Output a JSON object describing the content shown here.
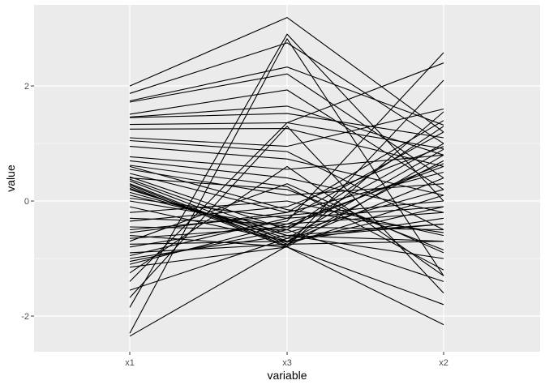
{
  "chart_data": {
    "type": "line",
    "subtype": "parallel-coordinates",
    "title": "",
    "xlabel": "variable",
    "ylabel": "value",
    "categories": [
      "x1",
      "x3",
      "x2"
    ],
    "yticks": [
      -2,
      0,
      2
    ],
    "ylim": [
      -2.62,
      3.41
    ],
    "grid": true,
    "legend": "none",
    "colors": {
      "panel": "#ebebeb",
      "grid": "#ffffff",
      "line": "#000000",
      "tick_text": "#4d4d4d"
    },
    "series": [
      {
        "values": [
          2.0,
          3.19,
          1.2
        ]
      },
      {
        "values": [
          1.87,
          2.75,
          1.0
        ]
      },
      {
        "values": [
          1.74,
          2.33,
          1.32
        ]
      },
      {
        "values": [
          1.72,
          2.21,
          0.4
        ]
      },
      {
        "values": [
          1.51,
          1.93,
          0.2
        ]
      },
      {
        "values": [
          1.46,
          1.65,
          0.8
        ]
      },
      {
        "values": [
          1.45,
          1.52,
          1.1
        ]
      },
      {
        "values": [
          1.33,
          1.36,
          0.91
        ]
      },
      {
        "values": [
          1.25,
          1.26,
          0.6
        ]
      },
      {
        "values": [
          1.1,
          0.95,
          1.6
        ]
      },
      {
        "values": [
          1.05,
          0.86,
          -0.5
        ]
      },
      {
        "values": [
          0.95,
          0.73,
          0.1
        ]
      },
      {
        "values": [
          0.77,
          0.55,
          0.8
        ]
      },
      {
        "values": [
          0.7,
          0.4,
          -0.2
        ]
      },
      {
        "values": [
          0.62,
          0.25,
          -1.2
        ]
      },
      {
        "values": [
          0.55,
          0.1,
          0.3
        ]
      },
      {
        "values": [
          0.48,
          -0.2,
          0.5
        ]
      },
      {
        "values": [
          0.42,
          -0.5,
          1.3
        ]
      },
      {
        "values": [
          0.38,
          -0.6,
          -0.4
        ]
      },
      {
        "values": [
          0.35,
          -0.7,
          0.7
        ]
      },
      {
        "values": [
          0.3,
          -0.75,
          -0.7
        ]
      },
      {
        "values": [
          0.28,
          -0.78,
          1.55
        ]
      },
      {
        "values": [
          0.25,
          -0.8,
          -1.8
        ]
      },
      {
        "values": [
          0.22,
          -0.72,
          -0.1
        ]
      },
      {
        "values": [
          0.2,
          -0.65,
          0.9
        ]
      },
      {
        "values": [
          0.15,
          -0.6,
          -1.0
        ]
      },
      {
        "values": [
          0.1,
          -0.55,
          0.2
        ]
      },
      {
        "values": [
          0.05,
          -0.3,
          1.2
        ]
      },
      {
        "values": [
          -0.1,
          -0.7,
          -0.3
        ]
      },
      {
        "values": [
          -0.2,
          0.0,
          -0.6
        ]
      },
      {
        "values": [
          -0.3,
          -0.4,
          0.6
        ]
      },
      {
        "values": [
          -0.45,
          -0.5,
          -1.4
        ]
      },
      {
        "values": [
          -0.5,
          -0.25,
          0.0
        ]
      },
      {
        "values": [
          -0.55,
          -0.2,
          1.4
        ]
      },
      {
        "values": [
          -0.6,
          -0.8,
          -2.15
        ]
      },
      {
        "values": [
          -0.65,
          -0.45,
          -0.5
        ]
      },
      {
        "values": [
          -0.7,
          0.3,
          -0.9
        ]
      },
      {
        "values": [
          -0.75,
          -0.7,
          0.4
        ]
      },
      {
        "values": [
          -0.8,
          -0.35,
          2.58
        ]
      },
      {
        "values": [
          -0.9,
          -0.75,
          0.1
        ]
      },
      {
        "values": [
          -1.0,
          -0.6,
          -0.7
        ]
      },
      {
        "values": [
          -1.05,
          -0.5,
          1.0
        ]
      },
      {
        "values": [
          -1.1,
          -0.4,
          -0.2
        ]
      },
      {
        "values": [
          -1.15,
          -0.8,
          0.8
        ]
      },
      {
        "values": [
          -1.25,
          0.6,
          -1.3
        ]
      },
      {
        "values": [
          -1.4,
          1.36,
          2.4
        ]
      },
      {
        "values": [
          -1.55,
          -0.65,
          -0.4
        ]
      },
      {
        "values": [
          -1.68,
          1.3,
          -1.6
        ]
      },
      {
        "values": [
          -1.85,
          2.9,
          0.0
        ]
      },
      {
        "values": [
          -2.3,
          2.82,
          -1.3
        ]
      },
      {
        "values": [
          -2.35,
          -0.78,
          2.1
        ]
      },
      {
        "values": [
          0.6,
          -0.15,
          -0.55
        ]
      },
      {
        "values": [
          0.4,
          0.2,
          -0.85
        ]
      },
      {
        "values": [
          -0.35,
          -0.1,
          0.95
        ]
      },
      {
        "values": [
          0.0,
          -0.45,
          0.65
        ]
      },
      {
        "values": [
          -0.95,
          -0.3,
          -0.1
        ]
      }
    ]
  }
}
